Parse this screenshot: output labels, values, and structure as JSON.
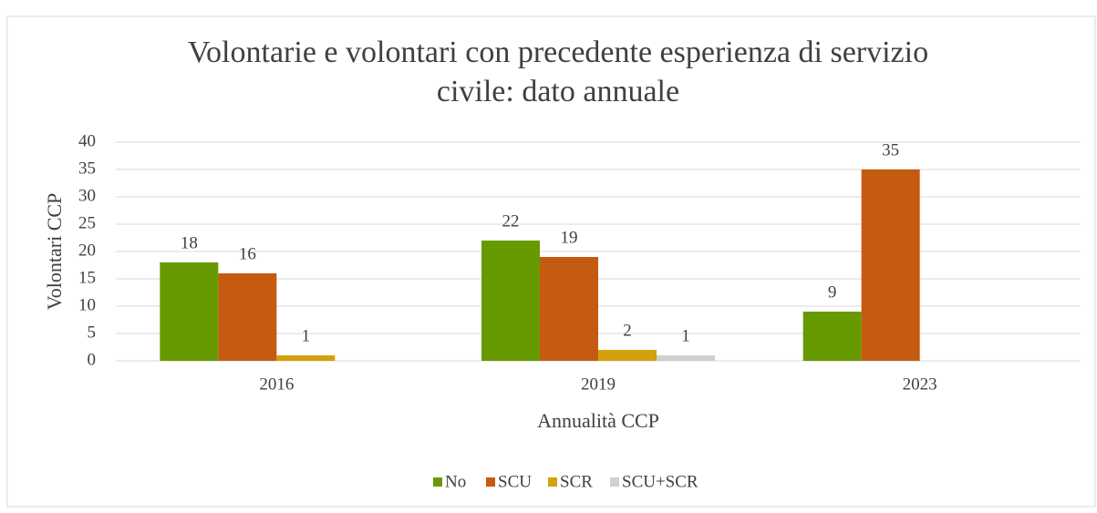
{
  "chart_data": {
    "type": "bar",
    "title": [
      "Volontarie e volontari con precedente esperienza di servizio",
      "civile: dato annuale"
    ],
    "x_label": "Annualità CCP",
    "y_label": "Volontari CCP",
    "categories": [
      "2016",
      "2019",
      "2023"
    ],
    "series": [
      {
        "name": "No",
        "color": "#669a00",
        "values": [
          18,
          22,
          9
        ]
      },
      {
        "name": "SCU",
        "color": "#c55a11",
        "values": [
          16,
          19,
          35
        ]
      },
      {
        "name": "SCR",
        "color": "#d4a00e",
        "values": [
          1,
          2,
          null
        ]
      },
      {
        "name": "SCU+SCR",
        "color": "#d0d0d0",
        "values": [
          null,
          1,
          null
        ]
      }
    ],
    "ylim": [
      0,
      40
    ],
    "yticks": [
      0,
      5,
      10,
      15,
      20,
      25,
      30,
      35,
      40
    ],
    "grid": true,
    "legend": "bottom"
  }
}
